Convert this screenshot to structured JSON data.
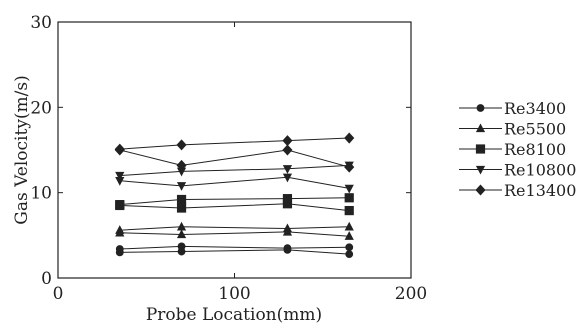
{
  "chart_data": {
    "type": "scatter",
    "xlabel": "Probe Location(mm)",
    "ylabel": "Gas Velocity(m/s)",
    "xlim": [
      0,
      200
    ],
    "ylim": [
      0,
      30
    ],
    "x_ticks": [
      0,
      100,
      200
    ],
    "y_ticks": [
      0,
      10,
      20,
      30
    ],
    "x_tick_labels": [
      "0",
      "100",
      "200"
    ],
    "y_tick_labels": [
      "0",
      "10",
      "20",
      "30"
    ],
    "grid": false,
    "legend_position": "right",
    "series": [
      {
        "name": "Re3400",
        "marker": "circle",
        "lines": [
          [
            [
              35,
              3.0
            ],
            [
              70,
              3.1
            ],
            [
              130,
              3.3
            ],
            [
              165,
              2.8
            ]
          ],
          [
            [
              35,
              3.4
            ],
            [
              70,
              3.7
            ],
            [
              130,
              3.5
            ],
            [
              165,
              3.6
            ]
          ]
        ]
      },
      {
        "name": "Re5500",
        "marker": "triangle-up",
        "lines": [
          [
            [
              35,
              5.6
            ],
            [
              70,
              6.0
            ],
            [
              130,
              5.8
            ],
            [
              165,
              6.0
            ]
          ],
          [
            [
              35,
              5.3
            ],
            [
              70,
              5.1
            ],
            [
              130,
              5.4
            ],
            [
              165,
              4.9
            ]
          ]
        ]
      },
      {
        "name": "Re8100",
        "marker": "square",
        "lines": [
          [
            [
              35,
              8.6
            ],
            [
              70,
              9.2
            ],
            [
              130,
              9.3
            ],
            [
              165,
              9.4
            ]
          ],
          [
            [
              35,
              8.5
            ],
            [
              70,
              8.2
            ],
            [
              130,
              8.7
            ],
            [
              165,
              7.9
            ]
          ]
        ]
      },
      {
        "name": "Re10800",
        "marker": "triangle-down",
        "lines": [
          [
            [
              35,
              12.0
            ],
            [
              70,
              12.5
            ],
            [
              130,
              12.8
            ],
            [
              165,
              13.2
            ]
          ],
          [
            [
              35,
              11.4
            ],
            [
              70,
              10.8
            ],
            [
              130,
              11.8
            ],
            [
              165,
              10.5
            ]
          ]
        ]
      },
      {
        "name": "Re13400",
        "marker": "diamond",
        "lines": [
          [
            [
              35,
              15.1
            ],
            [
              70,
              15.6
            ],
            [
              130,
              16.1
            ],
            [
              165,
              16.4
            ]
          ],
          [
            [
              35,
              15.0
            ],
            [
              70,
              13.2
            ],
            [
              130,
              15.0
            ],
            [
              165,
              13.0
            ]
          ]
        ]
      }
    ],
    "colors": {
      "ink": "#222222",
      "background": "#ffffff"
    }
  }
}
